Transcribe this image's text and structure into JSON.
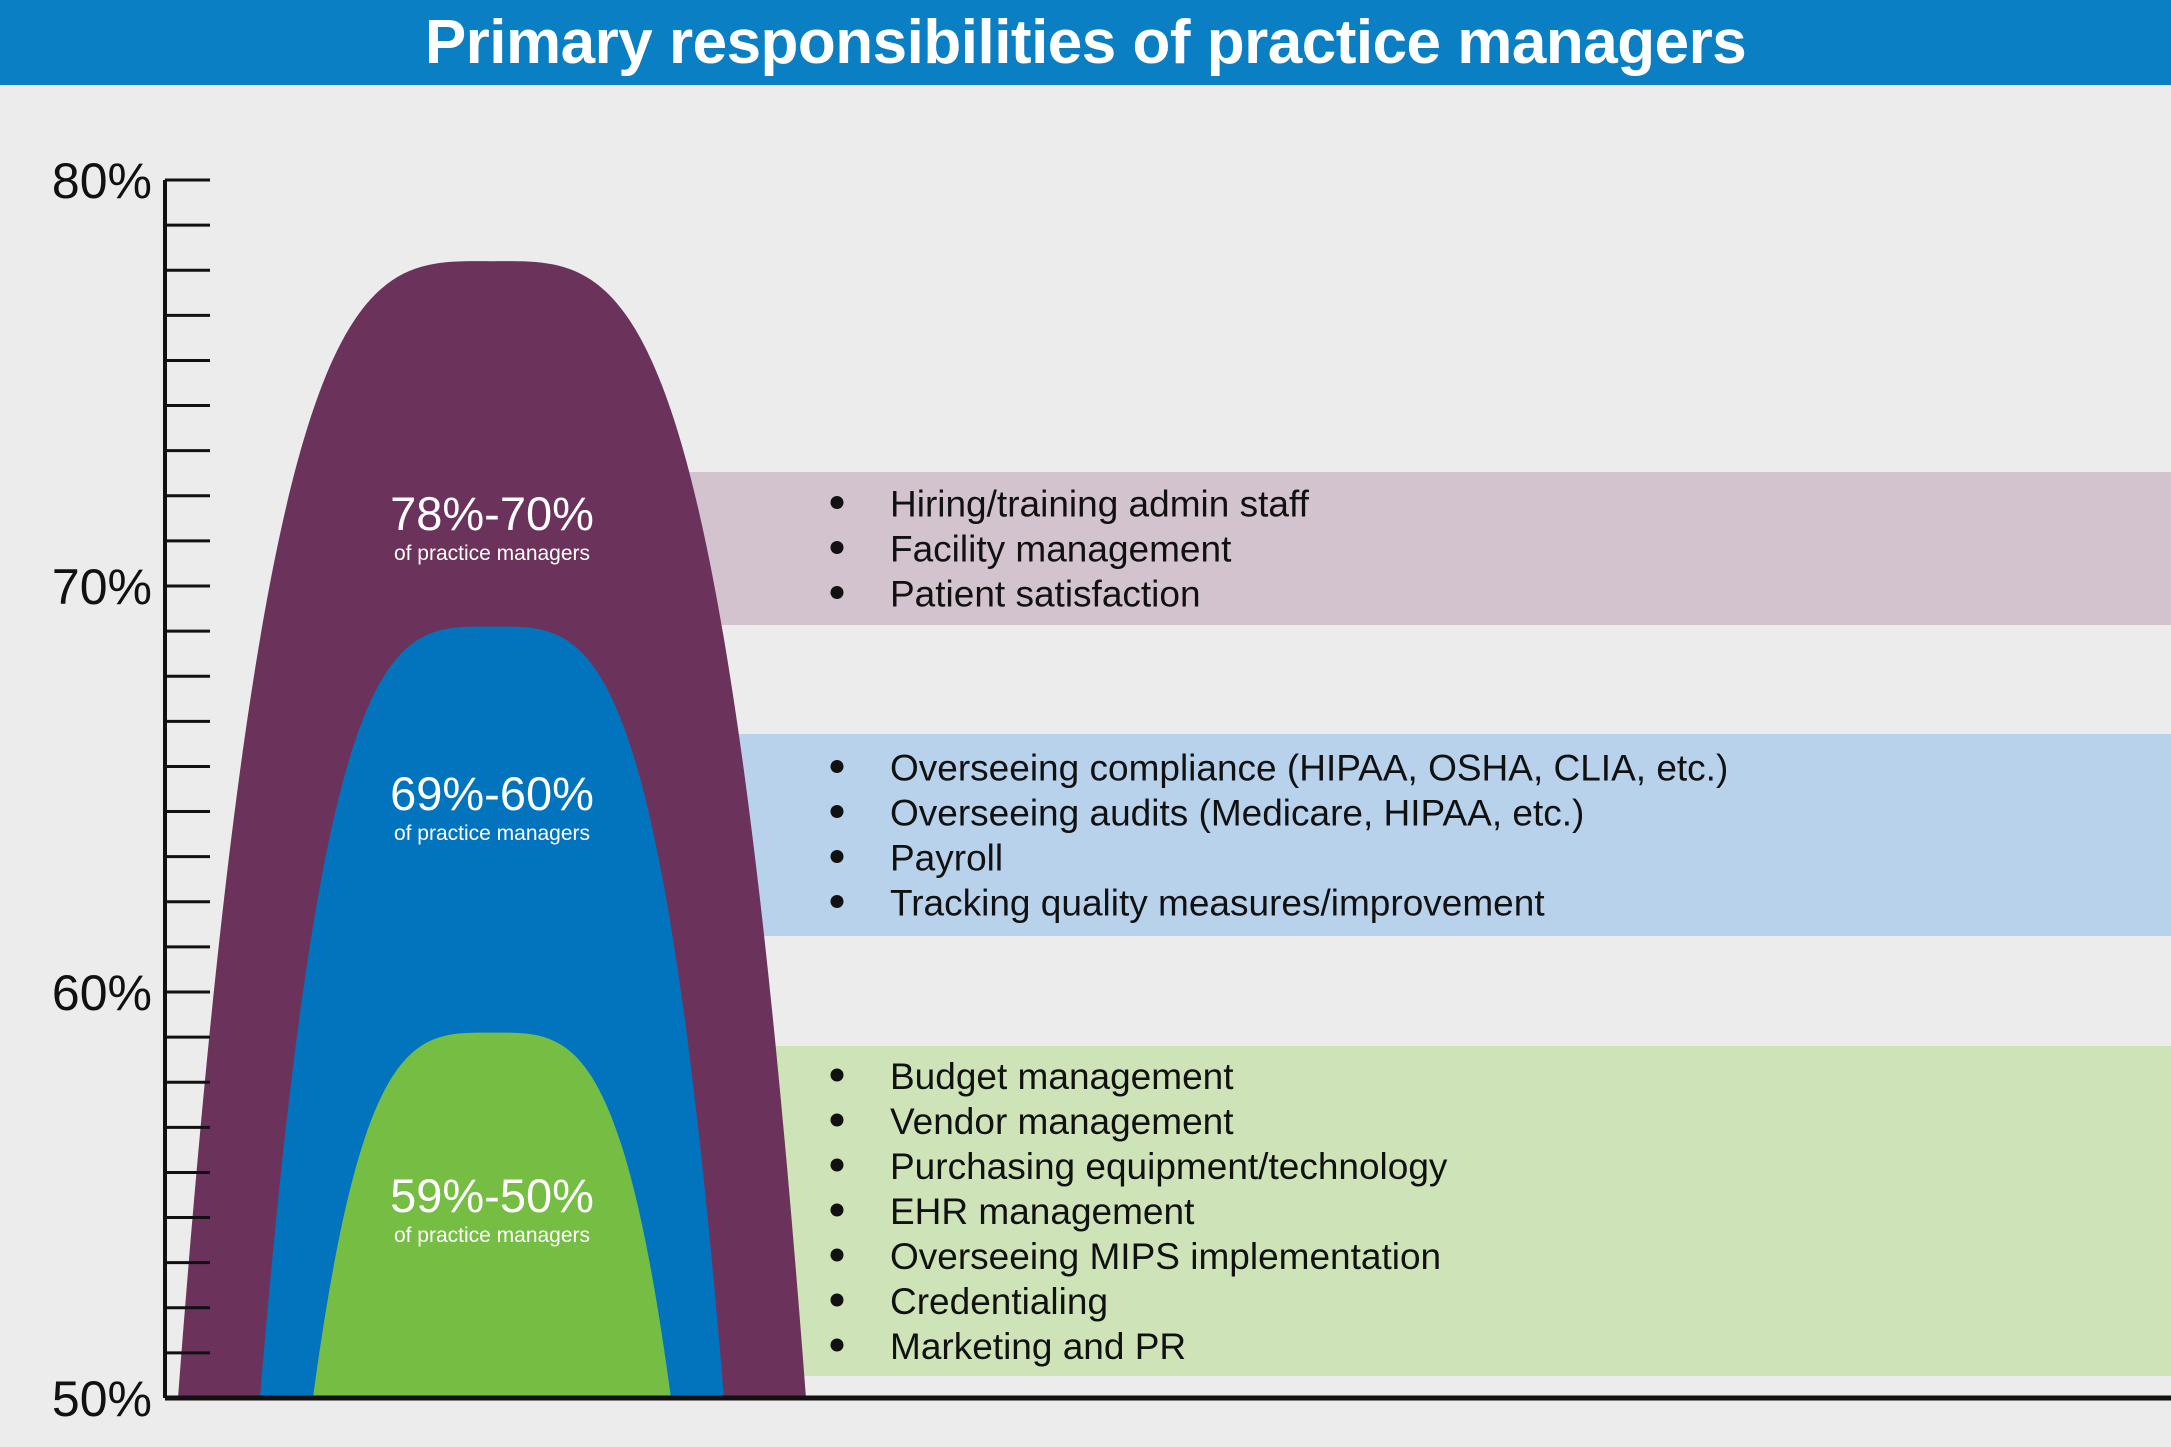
{
  "title": "Primary responsibilities of practice managers",
  "chart_data": {
    "type": "area",
    "title": "Primary responsibilities of practice managers",
    "ylim": [
      50,
      80
    ],
    "y_ticks": [
      "80%",
      "70%",
      "60%",
      "50%"
    ],
    "y_tick_values": [
      80,
      70,
      60,
      50
    ],
    "minor_tick_step": 1.1111,
    "tiers": [
      {
        "name": "78%-70%",
        "subtitle": "of practice managers",
        "peak": 78,
        "range": [
          70,
          78
        ],
        "color": "#6b335b",
        "band_color": "#d3c3cf",
        "items": [
          "Hiring/training admin staff",
          "Facility management",
          "Patient satisfaction"
        ]
      },
      {
        "name": "69%-60%",
        "subtitle": "of practice managers",
        "peak": 69,
        "range": [
          60,
          69
        ],
        "color": "#0274be",
        "band_color": "#b8d2ec",
        "items": [
          "Overseeing compliance (HIPAA, OSHA, CLIA, etc.)",
          "Overseeing audits (Medicare, HIPAA, etc.)",
          "Payroll",
          "Tracking quality measures/improvement"
        ]
      },
      {
        "name": "59%-50%",
        "subtitle": "of practice managers",
        "peak": 59,
        "range": [
          50,
          59
        ],
        "color": "#76bd43",
        "band_color": "#cee3b8",
        "items": [
          "Budget management",
          "Vendor management",
          "Purchasing equipment/technology",
          "EHR management",
          "Overseeing MIPS implementation",
          "Credentialing",
          "Marketing and PR"
        ]
      }
    ]
  }
}
